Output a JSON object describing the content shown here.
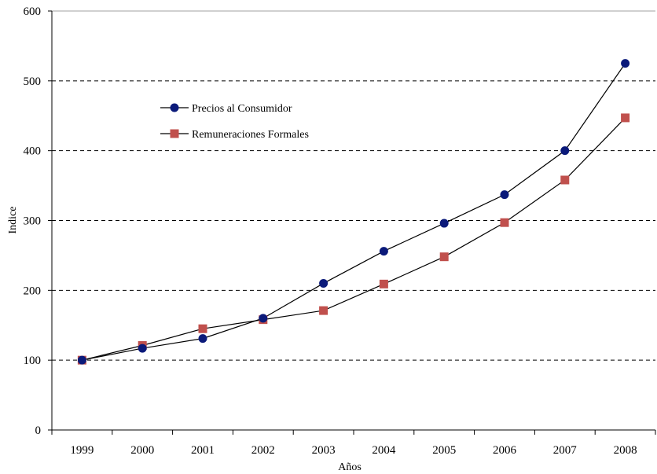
{
  "chart_data": {
    "type": "line",
    "categories": [
      "1999",
      "2000",
      "2001",
      "2002",
      "2003",
      "2004",
      "2005",
      "2006",
      "2007",
      "2008"
    ],
    "series": [
      {
        "name": "Precios al Consumidor",
        "values": [
          100,
          117,
          131,
          160,
          210,
          256,
          296,
          337,
          400,
          525
        ],
        "color": "#0b1a7a",
        "marker": "circle"
      },
      {
        "name": "Remuneraciones Formales",
        "values": [
          100,
          121,
          145,
          158,
          171,
          209,
          248,
          297,
          358,
          447
        ],
        "color": "#c0504d",
        "marker": "square"
      }
    ],
    "xlabel": "Años",
    "ylabel": "Indice",
    "ylim": [
      0,
      600
    ],
    "yticks": [
      "0",
      "100",
      "200",
      "300",
      "400",
      "500",
      "600"
    ],
    "grid": "horizontal dashed",
    "legend_position": "upper-left"
  }
}
